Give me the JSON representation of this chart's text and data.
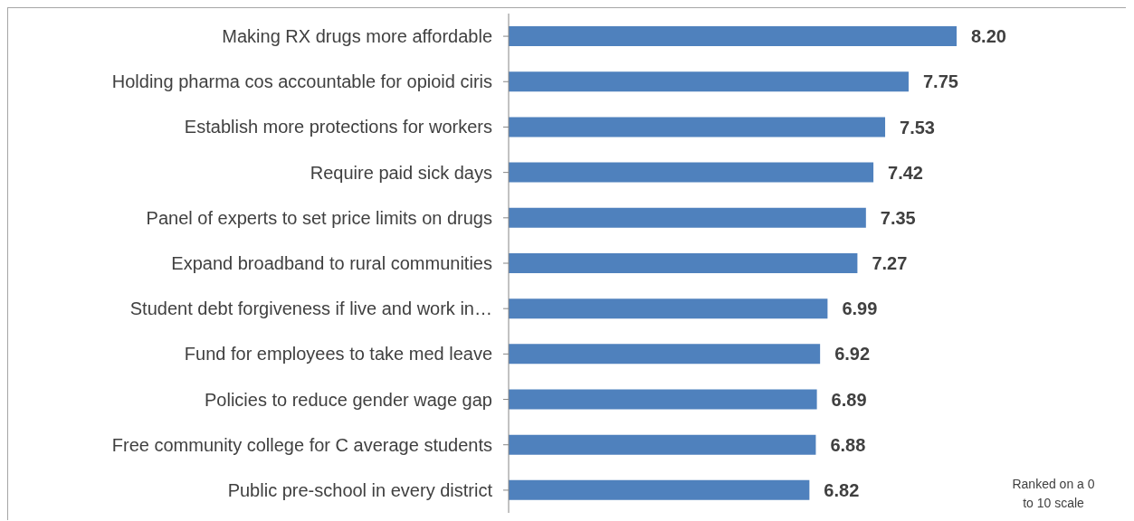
{
  "chart_data": {
    "type": "bar",
    "orientation": "horizontal",
    "categories": [
      "Making RX drugs more affordable",
      "Holding pharma cos accountable for opioid ciris",
      "Establish more protections for workers",
      "Require paid sick days",
      "Panel of experts to set price limits on drugs",
      "Expand broadband to rural communities",
      "Student debt forgiveness if live and work in…",
      "Fund for employees to take med leave",
      "Policies to reduce gender wage gap",
      "Free community college for C average students",
      "Public pre-school in every district"
    ],
    "values": [
      8.2,
      7.75,
      7.53,
      7.42,
      7.35,
      7.27,
      6.99,
      6.92,
      6.89,
      6.88,
      6.82
    ],
    "value_labels": [
      "8.20",
      "7.75",
      "7.53",
      "7.42",
      "7.35",
      "7.27",
      "6.99",
      "6.92",
      "6.89",
      "6.88",
      "6.82"
    ],
    "color": "#4f81bd",
    "xlim": [
      4,
      8.2
    ],
    "tick_labels": "y",
    "annotations": [
      "Ranked on a 0 to 10 scale"
    ]
  }
}
